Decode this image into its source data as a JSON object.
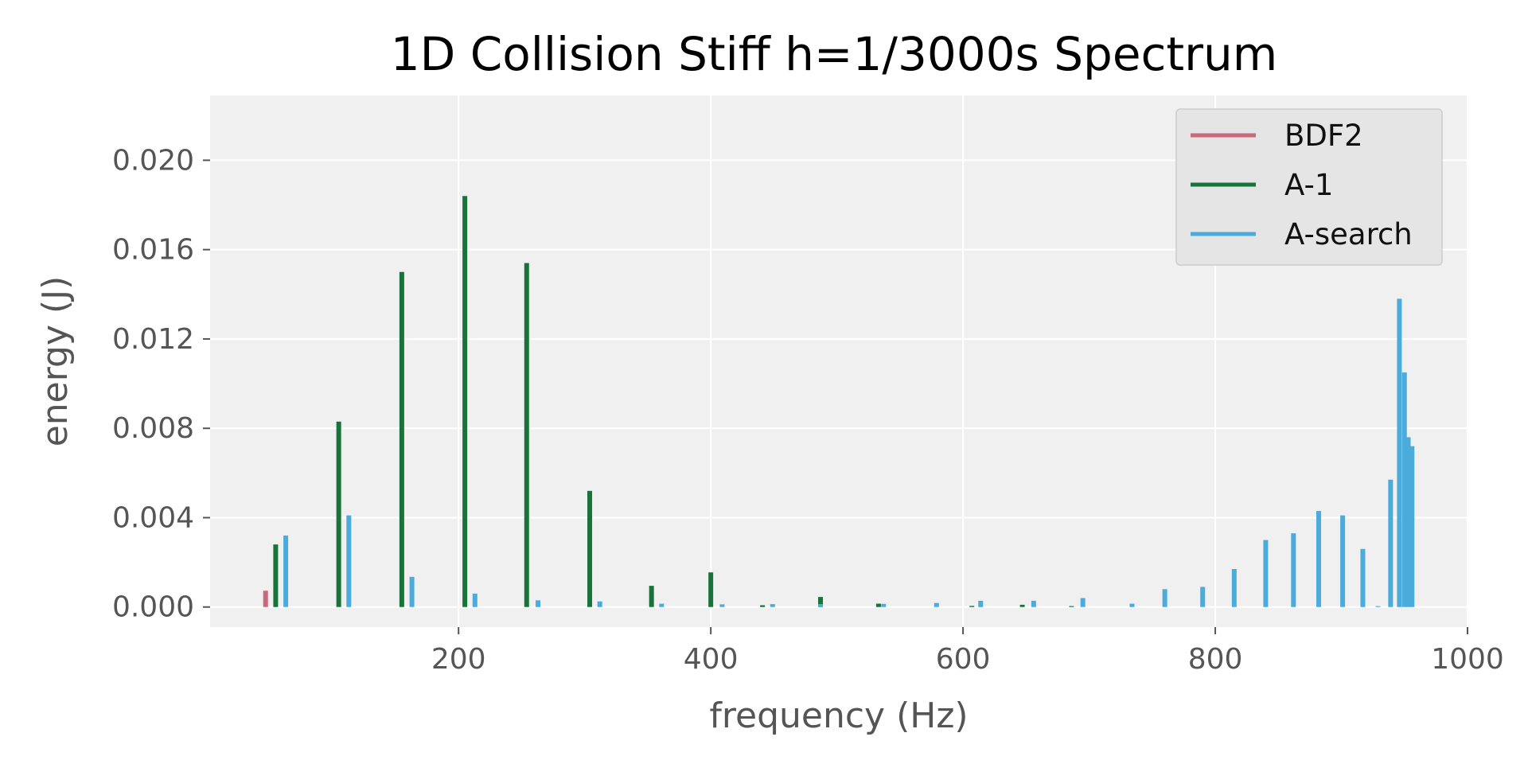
{
  "chart_data": {
    "type": "bar",
    "title": "1D Collision Stiff h=1/3000s Spectrum",
    "xlabel": "frequency (Hz)",
    "ylabel": "energy (J)",
    "xlim": [
      3,
      1000
    ],
    "ylim": [
      -0.0009,
      0.0229
    ],
    "xticks": [
      200,
      400,
      600,
      800,
      1000
    ],
    "xtick_labels": [
      "200",
      "400",
      "600",
      "800",
      "1000"
    ],
    "yticks": [
      0.0,
      0.004,
      0.008,
      0.012,
      0.016,
      0.02
    ],
    "ytick_labels": [
      "0.000",
      "0.004",
      "0.008",
      "0.012",
      "0.016",
      "0.020"
    ],
    "grid": true,
    "legend_position": "top-right",
    "colors": {
      "background": "#F0F0F0",
      "grid": "#FFFFFF"
    },
    "series": [
      {
        "name": "BDF2",
        "color": "#C9697C",
        "x": [
          47
        ],
        "values": [
          0.00073
        ]
      },
      {
        "name": "A-1",
        "color": "#17733A",
        "x": [
          55,
          105,
          155,
          205,
          254,
          304,
          353,
          400,
          441,
          487,
          533,
          607,
          647,
          686
        ],
        "values": [
          0.0028,
          0.0083,
          0.015,
          0.0184,
          0.0154,
          0.0052,
          0.00095,
          0.00155,
          8e-05,
          0.00045,
          0.00015,
          5e-05,
          0.0001,
          4e-05
        ]
      },
      {
        "name": "A-search",
        "color": "#4BABDB",
        "x": [
          63,
          113,
          163,
          213,
          263,
          312,
          361,
          409,
          449,
          487,
          537,
          579,
          614,
          656,
          695,
          734,
          760,
          790,
          815,
          840,
          862,
          882,
          901,
          917,
          929,
          939,
          946,
          950,
          953,
          956
        ],
        "values": [
          0.0032,
          0.0041,
          0.00135,
          0.0006,
          0.0003,
          0.00025,
          0.00015,
          0.00012,
          0.00013,
          0.00013,
          0.00014,
          0.00018,
          0.00028,
          0.00028,
          0.0004,
          0.00015,
          0.0008,
          0.0009,
          0.0017,
          0.003,
          0.0033,
          0.0043,
          0.0041,
          0.0026,
          4e-05,
          0.0057,
          0.0138,
          0.0105,
          0.0076,
          0.0072
        ]
      }
    ]
  }
}
